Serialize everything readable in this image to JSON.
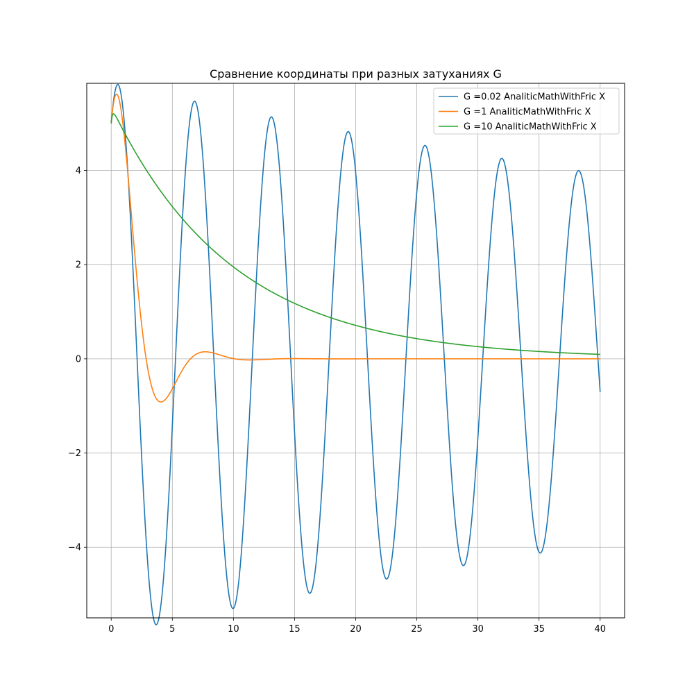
{
  "chart_data": {
    "type": "line",
    "title": "Сравнение координаты при разных затуханиях G",
    "xlabel": "",
    "ylabel": "",
    "xlim": [
      -2,
      42
    ],
    "ylim": [
      -5.5,
      5.85
    ],
    "xticks": [
      0,
      5,
      10,
      15,
      20,
      25,
      30,
      35,
      40
    ],
    "xtick_labels": [
      "0",
      "5",
      "10",
      "15",
      "20",
      "25",
      "30",
      "35",
      "40"
    ],
    "yticks": [
      -4,
      -2,
      0,
      2,
      4
    ],
    "ytick_labels": [
      "−4",
      "−2",
      "0",
      "2",
      "4"
    ],
    "grid": true,
    "legend_position": "top-right",
    "series": [
      {
        "name": "G =0.02 AnaliticMathWithFric X",
        "color": "#1f77b4",
        "model": {
          "kind": "damped_oscillation",
          "x0": 5.0,
          "v0": 3.0,
          "omega": 1.0,
          "gamma": 0.02
        },
        "x_range": [
          0,
          40
        ]
      },
      {
        "name": "G =1 AnaliticMathWithFric X",
        "color": "#ff7f0e",
        "model": {
          "kind": "damped_oscillation",
          "x0": 5.0,
          "v0": 3.0,
          "omega": 1.0,
          "gamma": 1.0
        },
        "x_range": [
          0,
          40
        ]
      },
      {
        "name": "G =10 AnaliticMathWithFric X",
        "color": "#2ca02c",
        "model": {
          "kind": "damped_oscillation",
          "x0": 5.0,
          "v0": 3.0,
          "omega": 1.0,
          "gamma": 10.0
        },
        "x_range": [
          0,
          40
        ]
      }
    ]
  }
}
